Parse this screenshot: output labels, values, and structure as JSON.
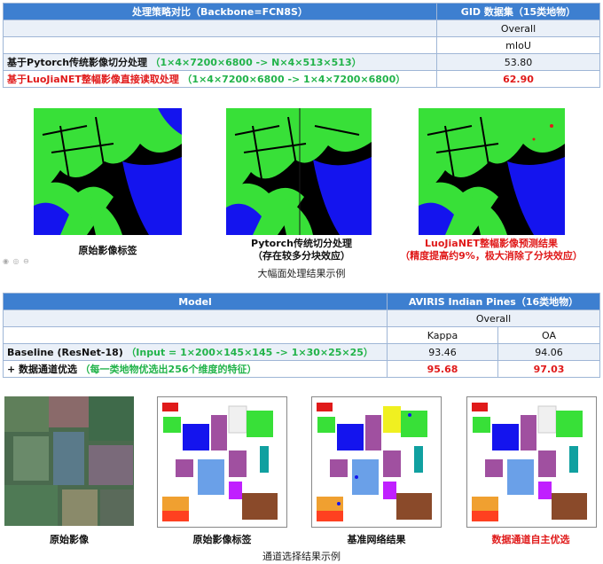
{
  "table1": {
    "header_left": "处理策略对比（Backbone=FCN8S）",
    "header_right": "GID 数据集（15类地物）",
    "overall_label": "Overall",
    "metric_label": "mIoU",
    "row1_method": "基于Pytorch传统影像切分处理",
    "row1_note": "（1×4×7200×6800 -> N×4×513×513）",
    "row1_value": "53.80",
    "row2_method": "基于LuoJiaNET整幅影像直接读取处理",
    "row2_note": "（1×4×7200×6800 -> 1×4×7200×6800）",
    "row2_value": "62.90"
  },
  "gallery1": {
    "cap1": "原始影像标签",
    "cap2_line1": "Pytorch传统切分处理",
    "cap2_line2": "（存在较多分块效应）",
    "cap3_line1": "LuoJiaNET整幅影像预测结果",
    "cap3_line2": "（精度提高约9%，极大消除了分块效应）",
    "title": "大幅面处理结果示例"
  },
  "table2": {
    "header_left": "Model",
    "header_right": "AVIRIS Indian Pines（16类地物）",
    "overall_label": "Overall",
    "col1": "Kappa",
    "col2": "OA",
    "row1_method": "Baseline (ResNet-18)",
    "row1_note": "（Input = 1×200×145×145 -> 1×30×25×25）",
    "row1_kappa": "93.46",
    "row1_oa": "94.06",
    "row2_method": "+ 数据通道优选",
    "row2_note": "（每一类地物优选出256个维度的特征）",
    "row2_kappa": "95.68",
    "row2_oa": "97.03"
  },
  "gallery2": {
    "cap1": "原始影像",
    "cap2": "原始影像标签",
    "cap3": "基准网络结果",
    "cap4": "数据通道自主优选",
    "title": "通道选择结果示例"
  },
  "colors": {
    "header_blue": "#3d7fd0",
    "highlight_red": "#e01a1a",
    "note_green": "#22b34a",
    "map_green": "#38e038",
    "map_blue": "#1414ee"
  }
}
